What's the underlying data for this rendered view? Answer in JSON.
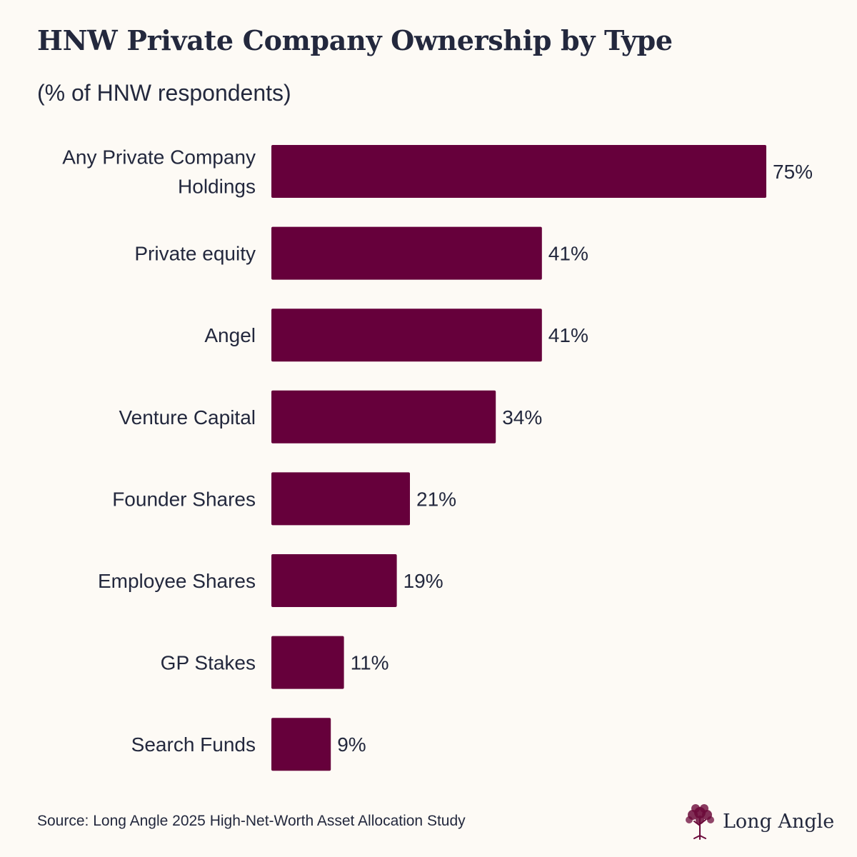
{
  "title": "HNW Private Company Ownership by Type",
  "subtitle": "(% of HNW respondents)",
  "source": "Source: Long Angle 2025 High-Net-Worth Asset Allocation Study",
  "brand": {
    "name": "Long Angle",
    "logo_icon": "tree-icon",
    "color": "#6b0a3a"
  },
  "colors": {
    "bar": "#66003b",
    "background": "#fdfaf5",
    "text": "#23283d"
  },
  "chart_data": {
    "type": "bar",
    "orientation": "horizontal",
    "title": "HNW Private Company Ownership by Type",
    "subtitle": "(% of HNW respondents)",
    "categories": [
      "Any Private Company Holdings",
      "Private equity",
      "Angel",
      "Venture Capital",
      "Founder Shares",
      "Employee Shares",
      "GP Stakes",
      "Search Funds"
    ],
    "values": [
      75,
      41,
      41,
      34,
      21,
      19,
      11,
      9
    ],
    "value_labels": [
      "75%",
      "41%",
      "41%",
      "34%",
      "21%",
      "19%",
      "11%",
      "9%"
    ],
    "xlim": [
      0,
      75
    ],
    "unit": "%",
    "grid": false,
    "legend": "none"
  }
}
